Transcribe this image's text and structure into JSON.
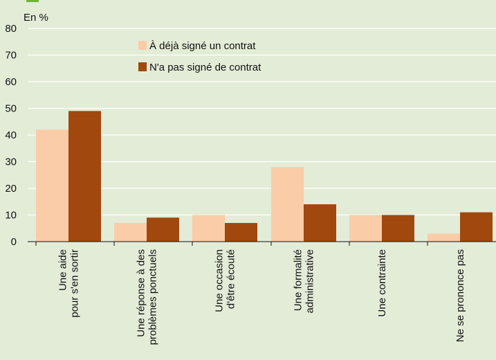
{
  "chart_data": {
    "type": "bar",
    "unit_label": "En %",
    "ylim": [
      0,
      80
    ],
    "yticks": [
      0,
      10,
      20,
      30,
      40,
      50,
      60,
      70,
      80
    ],
    "grid": true,
    "legend_position": "top-center",
    "categories": [
      [
        "Une aide",
        "pour s'en sortir"
      ],
      [
        "Une réponse à des",
        "problèmes ponctuels"
      ],
      [
        "Une occasion",
        "d'être écouté"
      ],
      [
        "Une formalité",
        "administrative"
      ],
      [
        "Une contrainte"
      ],
      [
        "Ne se prononce pas"
      ]
    ],
    "series": [
      {
        "name": "À déjà signé un contrat",
        "color": "#fbcca8",
        "values": [
          42,
          7,
          10,
          28,
          10,
          3
        ]
      },
      {
        "name": "N'a pas signé de contrat",
        "color": "#a0480d",
        "values": [
          49,
          9,
          7,
          14,
          10,
          11
        ]
      }
    ]
  }
}
